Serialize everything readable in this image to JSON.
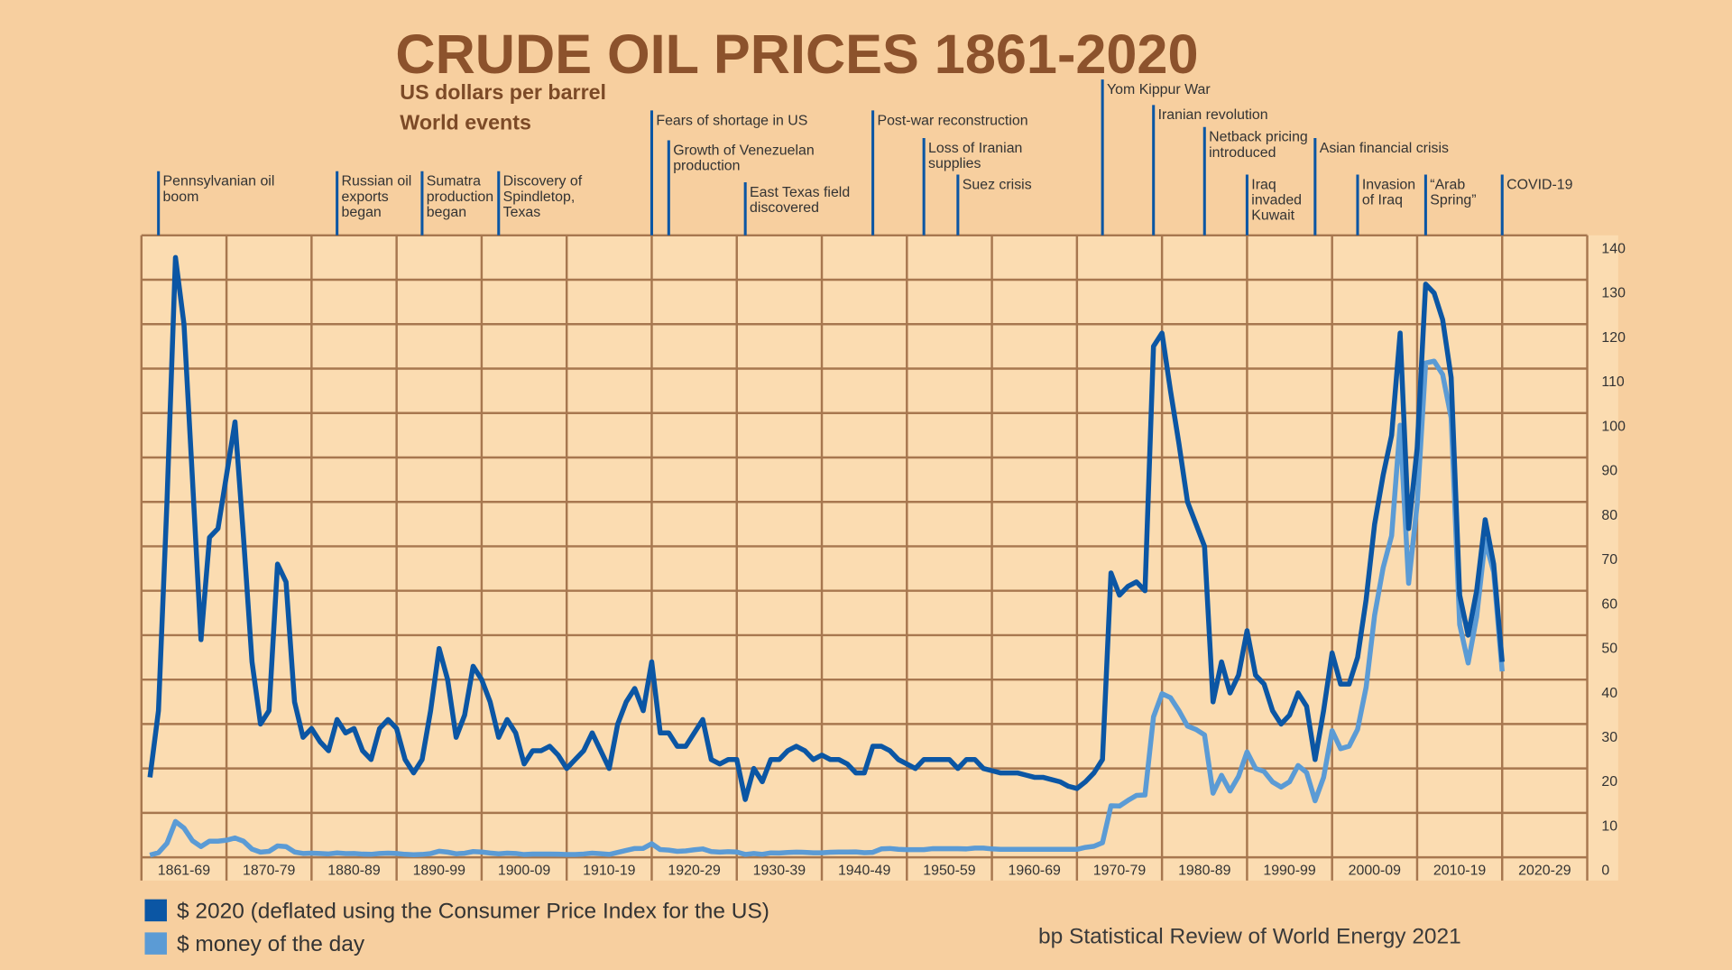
{
  "chart_data": {
    "type": "line",
    "title": "CRUDE OIL PRICES 1861-2020",
    "subtitle": "US dollars per barrel",
    "events_title": "World events",
    "source": "bp Statistical Review of World Energy 2021",
    "x": [
      1861,
      1862,
      1863,
      1864,
      1865,
      1866,
      1867,
      1868,
      1869,
      1870,
      1871,
      1872,
      1873,
      1874,
      1875,
      1876,
      1877,
      1878,
      1879,
      1880,
      1881,
      1882,
      1883,
      1884,
      1885,
      1886,
      1887,
      1888,
      1889,
      1890,
      1891,
      1892,
      1893,
      1894,
      1895,
      1896,
      1897,
      1898,
      1899,
      1900,
      1901,
      1902,
      1903,
      1904,
      1905,
      1906,
      1907,
      1908,
      1909,
      1910,
      1911,
      1912,
      1913,
      1914,
      1915,
      1916,
      1917,
      1918,
      1919,
      1920,
      1921,
      1922,
      1923,
      1924,
      1925,
      1926,
      1927,
      1928,
      1929,
      1930,
      1931,
      1932,
      1933,
      1934,
      1935,
      1936,
      1937,
      1938,
      1939,
      1940,
      1941,
      1942,
      1943,
      1944,
      1945,
      1946,
      1947,
      1948,
      1949,
      1950,
      1951,
      1952,
      1953,
      1954,
      1955,
      1956,
      1957,
      1958,
      1959,
      1960,
      1961,
      1962,
      1963,
      1964,
      1965,
      1966,
      1967,
      1968,
      1969,
      1970,
      1971,
      1972,
      1973,
      1974,
      1975,
      1976,
      1977,
      1978,
      1979,
      1980,
      1981,
      1982,
      1983,
      1984,
      1985,
      1986,
      1987,
      1988,
      1989,
      1990,
      1991,
      1992,
      1993,
      1994,
      1995,
      1996,
      1997,
      1998,
      1999,
      2000,
      2001,
      2002,
      2003,
      2004,
      2005,
      2006,
      2007,
      2008,
      2009,
      2010,
      2011,
      2012,
      2013,
      2014,
      2015,
      2016,
      2017,
      2018,
      2019,
      2020
    ],
    "series": [
      {
        "name": "$ 2020 (deflated using the Consumer Price Index for the US)",
        "color": "#0b56a4",
        "values": [
          18,
          33,
          80,
          135,
          120,
          85,
          49,
          72,
          74,
          86,
          98,
          72,
          44,
          30,
          33,
          66,
          62,
          35,
          27,
          29,
          26,
          24,
          31,
          28,
          29,
          24,
          22,
          29,
          31,
          29,
          22,
          19,
          22,
          33,
          47,
          40,
          27,
          32,
          43,
          40,
          35,
          27,
          31,
          28,
          21,
          24,
          24,
          25,
          23,
          20,
          22,
          24,
          28,
          24,
          20,
          30,
          35,
          38,
          33,
          44,
          28,
          28,
          25,
          25,
          28,
          31,
          22,
          21,
          22,
          22,
          13,
          20,
          17,
          22,
          22,
          24,
          25,
          24,
          22,
          23,
          22,
          22,
          21,
          19,
          19,
          25,
          25,
          24,
          22,
          21,
          20,
          22,
          22,
          22,
          22,
          20,
          22,
          22,
          20,
          19.5,
          19,
          19,
          19,
          18.5,
          18,
          18,
          17.5,
          17,
          16,
          15.5,
          17,
          19,
          22,
          64,
          59,
          61,
          62,
          60,
          115,
          118,
          105,
          93,
          80,
          75,
          70,
          35,
          44,
          37,
          41,
          51,
          41,
          39,
          33,
          30,
          32,
          37,
          34,
          22,
          33,
          46,
          39,
          39,
          45,
          58,
          75,
          86,
          95,
          118,
          74,
          92,
          129,
          127,
          121,
          108,
          59,
          50,
          60,
          76,
          66,
          44
        ]
      },
      {
        "name": "$ money of the day",
        "color": "#5b9bd5",
        "values": [
          0.49,
          1.05,
          3.15,
          8.06,
          6.59,
          3.74,
          2.41,
          3.63,
          3.64,
          3.86,
          4.34,
          3.64,
          1.83,
          1.17,
          1.35,
          2.56,
          2.42,
          1.19,
          0.86,
          0.95,
          0.86,
          0.78,
          1.0,
          0.84,
          0.88,
          0.71,
          0.67,
          0.88,
          0.94,
          0.87,
          0.67,
          0.56,
          0.64,
          0.84,
          1.36,
          1.18,
          0.79,
          0.91,
          1.29,
          1.19,
          0.96,
          0.8,
          0.94,
          0.86,
          0.62,
          0.73,
          0.72,
          0.72,
          0.7,
          0.61,
          0.61,
          0.74,
          0.95,
          0.81,
          0.64,
          1.1,
          1.56,
          1.98,
          2.01,
          3.07,
          1.73,
          1.61,
          1.34,
          1.43,
          1.68,
          1.88,
          1.3,
          1.17,
          1.27,
          1.19,
          0.65,
          0.87,
          0.67,
          1.0,
          0.97,
          1.09,
          1.18,
          1.13,
          1.02,
          1.02,
          1.14,
          1.19,
          1.2,
          1.21,
          1.05,
          1.12,
          1.9,
          1.99,
          1.8,
          1.71,
          1.71,
          1.71,
          1.93,
          1.93,
          1.93,
          1.93,
          1.9,
          2.08,
          2.08,
          1.9,
          1.8,
          1.8,
          1.8,
          1.8,
          1.8,
          1.8,
          1.8,
          1.8,
          1.8,
          1.8,
          2.24,
          2.48,
          3.29,
          11.58,
          11.53,
          12.8,
          13.92,
          14.02,
          31.61,
          36.83,
          35.93,
          32.97,
          29.55,
          28.78,
          27.56,
          14.43,
          18.44,
          14.92,
          18.23,
          23.73,
          20.0,
          19.32,
          16.97,
          15.82,
          17.02,
          20.67,
          19.09,
          12.72,
          17.97,
          28.5,
          24.44,
          25.02,
          28.83,
          38.27,
          54.52,
          65.14,
          72.39,
          97.26,
          61.67,
          79.5,
          111.26,
          111.67,
          108.66,
          98.95,
          52.39,
          43.73,
          54.19,
          71.31,
          64.21,
          41.84
        ]
      }
    ],
    "xlim": [
      1860,
      2030
    ],
    "xticks": [
      1860,
      1870,
      1880,
      1890,
      1900,
      1910,
      1920,
      1930,
      1940,
      1950,
      1960,
      1970,
      1980,
      1990,
      2000,
      2010,
      2020,
      2030
    ],
    "x_labels": [
      "1861-69",
      "1870-79",
      "1880-89",
      "1890-99",
      "1900-09",
      "1910-19",
      "1920-29",
      "1930-39",
      "1940-49",
      "1950-59",
      "1960-69",
      "1970-79",
      "1980-89",
      "1990-99",
      "2000-09",
      "2010-19",
      "2020-29"
    ],
    "ylim": [
      0,
      140
    ],
    "yticks": [
      0,
      10,
      20,
      30,
      40,
      50,
      60,
      70,
      80,
      90,
      100,
      110,
      120,
      130,
      140
    ],
    "grid": true,
    "events": [
      {
        "label": "Pennsylvanian oil\nboom",
        "x": 1862
      },
      {
        "label": "Russian oil\nexports\nbegan",
        "x": 1883
      },
      {
        "label": "Sumatra\nproduction\nbegan",
        "x": 1893
      },
      {
        "label": "Discovery of\nSpindletop,\nTexas",
        "x": 1902
      },
      {
        "label": "Fears of shortage in US",
        "x": 1920
      },
      {
        "label": "Growth of Venezuelan\nproduction",
        "x": 1922
      },
      {
        "label": "East Texas field\ndiscovered",
        "x": 1931
      },
      {
        "label": "Post-war reconstruction",
        "x": 1946
      },
      {
        "label": "Loss of Iranian\nsupplies",
        "x": 1952
      },
      {
        "label": "Suez crisis",
        "x": 1956
      },
      {
        "label": "Yom Kippur War",
        "x": 1973
      },
      {
        "label": "Iranian revolution",
        "x": 1979
      },
      {
        "label": "Netback pricing\nintroduced",
        "x": 1985
      },
      {
        "label": "Iraq\ninvaded\nKuwait",
        "x": 1990
      },
      {
        "label": "Asian financial crisis",
        "x": 1998
      },
      {
        "label": "Invasion\nof Iraq",
        "x": 2003
      },
      {
        "label": "“Arab\nSpring”",
        "x": 2011
      },
      {
        "label": "COVID-19",
        "x": 2020
      }
    ]
  }
}
